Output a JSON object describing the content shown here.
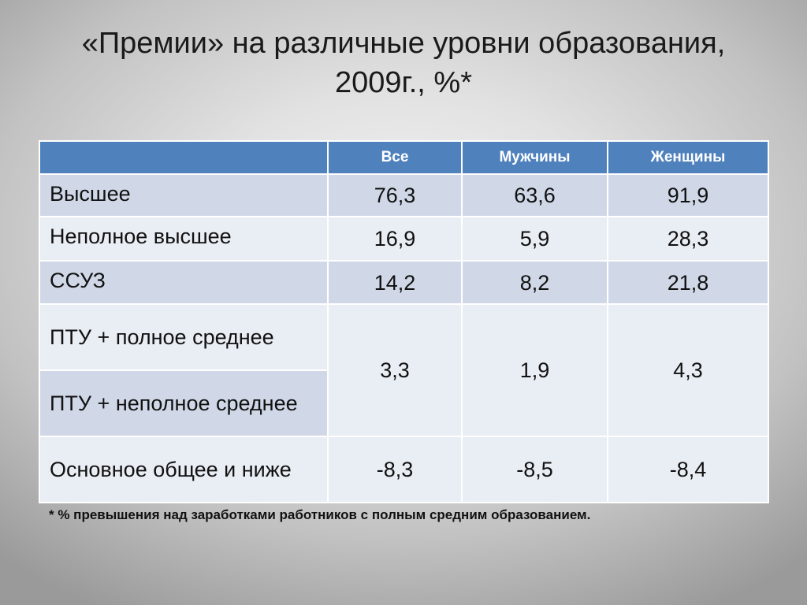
{
  "title": {
    "line1": "«Премии» на различные уровни образования,",
    "line2": "2009г., %*"
  },
  "chart_data": {
    "type": "table",
    "columns": [
      "",
      "Все",
      "Мужчины",
      "Женщины"
    ],
    "rows": [
      {
        "label": "Высшее",
        "values": [
          "76,3",
          "63,6",
          "91,9"
        ]
      },
      {
        "label": "Неполное высшее",
        "values": [
          "16,9",
          "5,9",
          "28,3"
        ]
      },
      {
        "label": "ССУЗ",
        "values": [
          "14,2",
          "8,2",
          "21,8"
        ]
      },
      {
        "label": "ПТУ + полное среднее",
        "values": [
          "3,3",
          "1,9",
          "4,3"
        ]
      },
      {
        "label": "ПТУ + неполное среднее",
        "values": [
          "3,3",
          "1,9",
          "4,3"
        ]
      },
      {
        "label": "Основное общее и ниже",
        "values": [
          "-8,3",
          "-8,5",
          "-8,4"
        ]
      }
    ],
    "merged_note": "Rows 4 and 5 share merged value cells"
  },
  "footnote": "* % превышения над заработками работников с полным средним образованием."
}
